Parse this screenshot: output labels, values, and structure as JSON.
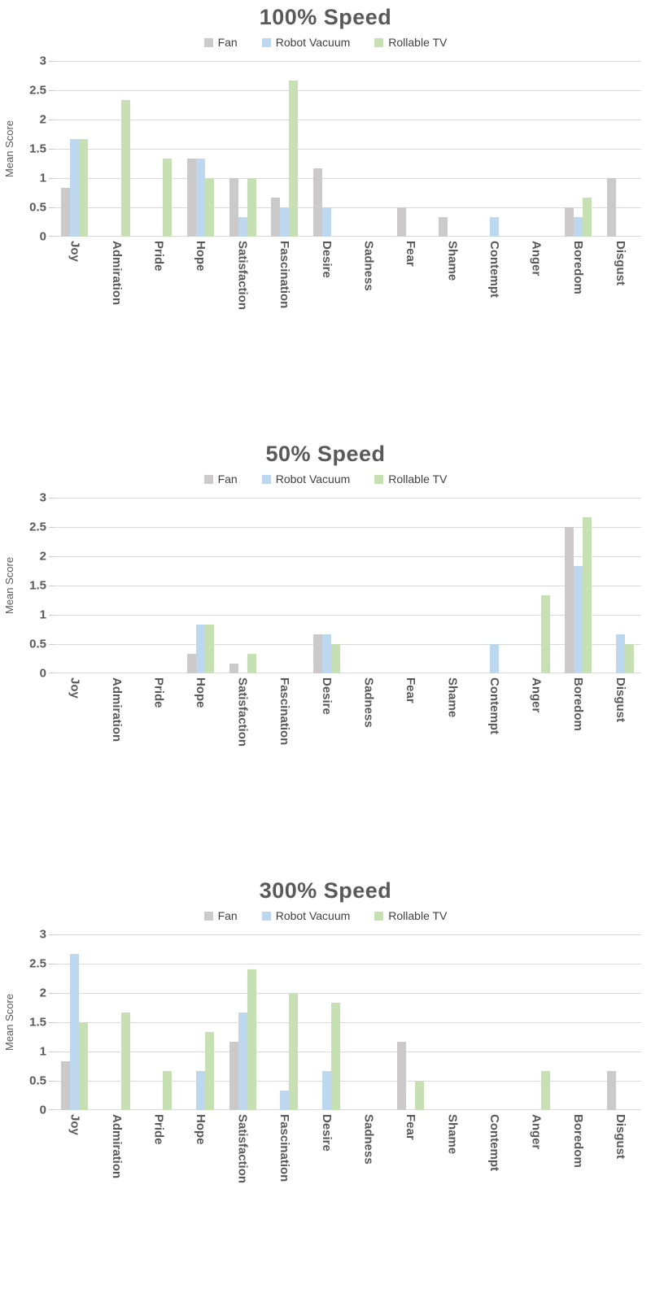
{
  "colors": {
    "fan": "#CBC9C9",
    "robot_vacuum": "#BDD7EE",
    "rollable_tv": "#C6E0B4",
    "gridline": "#D9D9D9",
    "text": "#595959"
  },
  "chart_data": [
    {
      "type": "bar",
      "title": "100% Speed",
      "ylabel": "Mean Score",
      "xlabel": "",
      "ylim": [
        0,
        3
      ],
      "yticks": [
        "3",
        "2.5",
        "2",
        "1.5",
        "1",
        "0.5",
        "0"
      ],
      "grid": true,
      "legend_position": "top",
      "categories": [
        "Joy",
        "Admiration",
        "Pride",
        "Hope",
        "Satisfaction",
        "Fascination",
        "Desire",
        "Sadness",
        "Fear",
        "Shame",
        "Contempt",
        "Anger",
        "Boredom",
        "Disgust"
      ],
      "series": [
        {
          "name": "Fan",
          "color": "#CBC9C9",
          "values": [
            0.83,
            0,
            0,
            1.33,
            1.0,
            0.67,
            1.17,
            0,
            0.5,
            0.33,
            0,
            0,
            0.5,
            1.0
          ]
        },
        {
          "name": "Robot Vacuum",
          "color": "#BDD7EE",
          "values": [
            1.67,
            0,
            0,
            1.33,
            0.33,
            0.5,
            0.5,
            0,
            0,
            0,
            0.33,
            0,
            0.33,
            0
          ]
        },
        {
          "name": "Rollable TV",
          "color": "#C6E0B4",
          "values": [
            1.67,
            2.33,
            1.33,
            1.0,
            1.0,
            2.67,
            0,
            0,
            0,
            0,
            0,
            0,
            0.67,
            0
          ]
        }
      ]
    },
    {
      "type": "bar",
      "title": "50% Speed",
      "ylabel": "Mean Score",
      "xlabel": "",
      "ylim": [
        0,
        3
      ],
      "yticks": [
        "3",
        "2.5",
        "2",
        "1.5",
        "1",
        "0.5",
        "0"
      ],
      "grid": true,
      "legend_position": "top",
      "categories": [
        "Joy",
        "Admiration",
        "Pride",
        "Hope",
        "Satisfaction",
        "Fascination",
        "Desire",
        "Sadness",
        "Fear",
        "Shame",
        "Contempt",
        "Anger",
        "Boredom",
        "Disgust"
      ],
      "series": [
        {
          "name": "Fan",
          "color": "#CBC9C9",
          "values": [
            0,
            0,
            0,
            0.33,
            0.17,
            0,
            0.67,
            0,
            0,
            0,
            0,
            0,
            2.5,
            0
          ]
        },
        {
          "name": "Robot Vacuum",
          "color": "#BDD7EE",
          "values": [
            0,
            0,
            0,
            0.83,
            0,
            0,
            0.67,
            0,
            0,
            0,
            0.5,
            0,
            1.83,
            0.67
          ]
        },
        {
          "name": "Rollable TV",
          "color": "#C6E0B4",
          "values": [
            0,
            0,
            0,
            0.83,
            0.33,
            0,
            0.5,
            0,
            0,
            0,
            0,
            1.33,
            2.67,
            0.5
          ]
        }
      ]
    },
    {
      "type": "bar",
      "title": "300% Speed",
      "ylabel": "Mean Score",
      "xlabel": "",
      "ylim": [
        0,
        3
      ],
      "yticks": [
        "3",
        "2.5",
        "2",
        "1.5",
        "1",
        "0.5",
        "0"
      ],
      "grid": true,
      "legend_position": "top",
      "categories": [
        "Joy",
        "Admiration",
        "Pride",
        "Hope",
        "Satisfaction",
        "Fascination",
        "Desire",
        "Sadness",
        "Fear",
        "Shame",
        "Contempt",
        "Anger",
        "Boredom",
        "Disgust"
      ],
      "series": [
        {
          "name": "Fan",
          "color": "#CBC9C9",
          "values": [
            0.83,
            0,
            0,
            0,
            1.17,
            0,
            0,
            0,
            1.17,
            0,
            0,
            0,
            0,
            0.67
          ]
        },
        {
          "name": "Robot Vacuum",
          "color": "#BDD7EE",
          "values": [
            2.67,
            0,
            0,
            0.67,
            1.67,
            0.33,
            0.67,
            0,
            0,
            0,
            0,
            0,
            0,
            0
          ]
        },
        {
          "name": "Rollable TV",
          "color": "#C6E0B4",
          "values": [
            1.5,
            1.67,
            0.67,
            1.33,
            2.4,
            2.0,
            1.83,
            0,
            0.5,
            0,
            0,
            0.67,
            0,
            0
          ]
        }
      ]
    }
  ]
}
